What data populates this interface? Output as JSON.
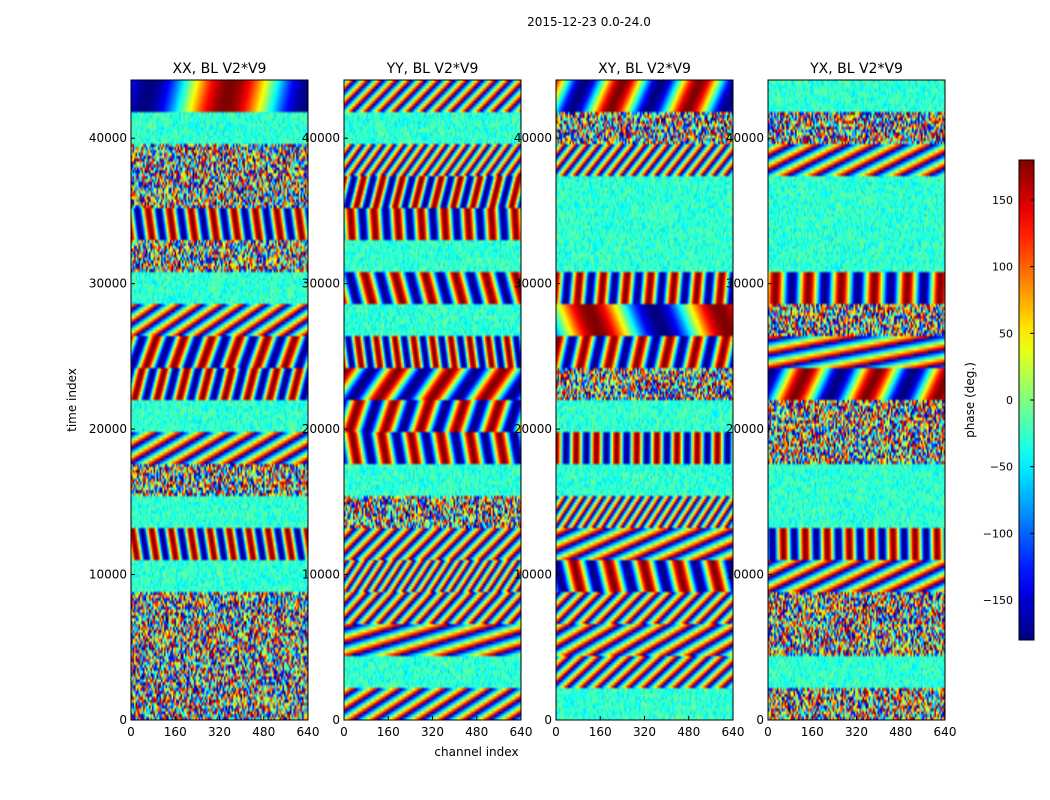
{
  "figure": {
    "suptitle": "2015-12-23 0.0-24.0"
  },
  "chart_data": [
    {
      "type": "heatmap",
      "title": "XX, BL V2*V9",
      "xlabel": "",
      "ylabel": "time index",
      "xlim": [
        0,
        640
      ],
      "ylim": [
        0,
        44000
      ],
      "xticks": [
        "0",
        "160",
        "320",
        "480",
        "640"
      ],
      "yticks": [
        "0",
        "10000",
        "20000",
        "30000",
        "40000"
      ]
    },
    {
      "type": "heatmap",
      "title": "YY, BL V2*V9",
      "xlabel": "channel index",
      "ylabel": "",
      "xlim": [
        0,
        640
      ],
      "ylim": [
        0,
        44000
      ],
      "xticks": [
        "0",
        "160",
        "320",
        "480",
        "640"
      ],
      "yticks": [
        "0",
        "10000",
        "20000",
        "30000",
        "40000"
      ]
    },
    {
      "type": "heatmap",
      "title": "XY, BL V2*V9",
      "xlabel": "",
      "ylabel": "",
      "xlim": [
        0,
        640
      ],
      "ylim": [
        0,
        44000
      ],
      "xticks": [
        "0",
        "160",
        "320",
        "480",
        "640"
      ],
      "yticks": [
        "0",
        "10000",
        "20000",
        "30000",
        "40000"
      ]
    },
    {
      "type": "heatmap",
      "title": "YX, BL V2*V9",
      "xlabel": "",
      "ylabel": "",
      "xlim": [
        0,
        640
      ],
      "ylim": [
        0,
        44000
      ],
      "xticks": [
        "0",
        "160",
        "320",
        "480",
        "640"
      ],
      "yticks": [
        "0",
        "10000",
        "20000",
        "30000",
        "40000"
      ]
    }
  ],
  "colorbar": {
    "label": "phase (deg.)",
    "range": [
      -180,
      180
    ],
    "colormap": "jet",
    "ticks": [
      "150",
      "100",
      "50",
      "0",
      "−50",
      "−100",
      "−150"
    ],
    "tick_values": [
      150,
      100,
      50,
      0,
      -50,
      -100,
      -150
    ]
  }
}
